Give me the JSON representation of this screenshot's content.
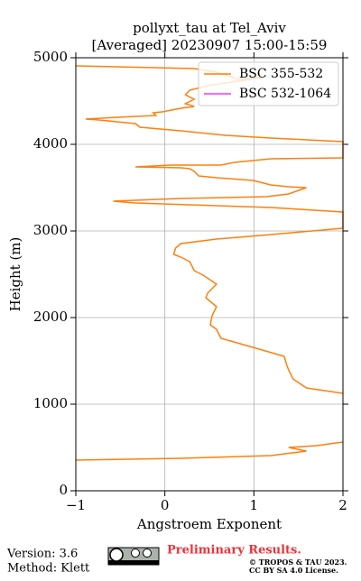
{
  "chart_data": {
    "type": "line",
    "title": "pollyxt_tau at Tel_Aviv",
    "subtitle": "[Averaged] 20230907 15:00-15:59",
    "x_label": "Angstroem Exponent",
    "y_label": "Height (m)",
    "xlim": [
      -1,
      2
    ],
    "ylim": [
      0,
      5000
    ],
    "xticks": [
      {
        "value": -1,
        "label": "−1"
      },
      0,
      1,
      2
    ],
    "yticks": [
      0,
      1000,
      2000,
      3000,
      4000,
      5000
    ],
    "grid": true,
    "legend": "upper right",
    "series": [
      {
        "name": "BSC 355-532",
        "color": "#ff7f0e",
        "x": [
          -1.0,
          0.33,
          0.58,
          0.83,
          1.09,
          0.48,
          0.28,
          0.23,
          0.33,
          0.23,
          0.33,
          0.18,
          -0.03,
          -0.13,
          -0.1,
          -0.53,
          -0.89,
          -0.74,
          -0.33,
          -0.28,
          0.18,
          0.68,
          1.19,
          2.0,
          2.0,
          1.19,
          0.78,
          0.63,
          0.07,
          -0.33,
          0.18,
          0.28,
          0.33,
          0.38,
          0.58,
          0.99,
          1.19,
          1.39,
          1.59,
          1.39,
          1.14,
          0.18,
          -0.58,
          -0.33,
          1.19,
          2.0,
          2.0,
          1.19,
          0.58,
          0.18,
          0.12,
          0.1,
          0.18,
          0.28,
          0.33,
          0.43,
          0.58,
          0.48,
          0.46,
          0.58,
          0.53,
          0.51,
          0.58,
          0.63,
          0.99,
          1.34,
          1.37,
          1.39,
          1.44,
          1.59,
          2.0,
          null,
          2.0,
          1.7,
          1.39,
          1.59,
          1.19,
          0.18,
          -1.0
        ],
        "values": [
          4906,
          4875,
          4833,
          4750,
          4771,
          4677,
          4625,
          4573,
          4521,
          4469,
          4438,
          4417,
          4375,
          4365,
          4333,
          4313,
          4292,
          4281,
          4240,
          4198,
          4156,
          4104,
          4073,
          4031,
          3844,
          3833,
          3792,
          3760,
          3760,
          3740,
          3729,
          3719,
          3688,
          3635,
          3615,
          3583,
          3531,
          3510,
          3500,
          3427,
          3396,
          3375,
          3344,
          3323,
          3271,
          3219,
          3031,
          2958,
          2906,
          2854,
          2802,
          2729,
          2698,
          2646,
          2542,
          2490,
          2385,
          2281,
          2229,
          2125,
          2021,
          1917,
          1865,
          1760,
          1656,
          1552,
          1448,
          1396,
          1292,
          1188,
          1125,
          null,
          563,
          521,
          500,
          458,
          406,
          375,
          354
        ]
      },
      {
        "name": "BSC 532-1064",
        "color": "#ff33ff",
        "x": [],
        "values": []
      }
    ],
    "footer": {
      "version": "Version: 3.6",
      "method": "Method: Klett",
      "notice": "Preliminary Results.",
      "copyright": "© TROPOS & TAU 2023.",
      "license": "CC BY SA 4.0 License."
    }
  }
}
